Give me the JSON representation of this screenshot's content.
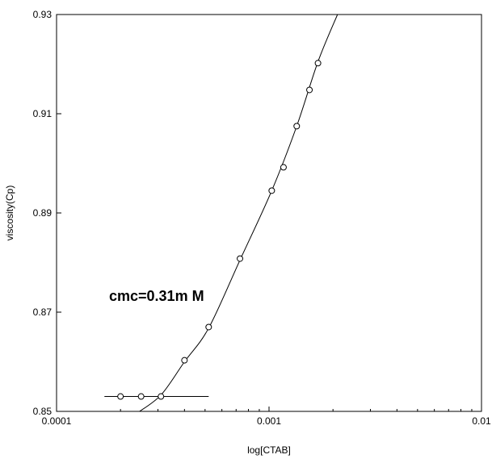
{
  "chart_data": {
    "type": "scatter",
    "title": "",
    "xlabel": "log[CTAB]",
    "ylabel": "viscosity(Cp)",
    "xscale": "log",
    "xlim": [
      0.0001,
      0.01
    ],
    "ylim": [
      0.85,
      0.93
    ],
    "xticks": [
      0.0001,
      0.001,
      0.01
    ],
    "xtick_labels": [
      "0.0001",
      "0.001",
      "0.01"
    ],
    "yticks": [
      0.85,
      0.87,
      0.89,
      0.91,
      0.93
    ],
    "ytick_labels": [
      "0.85",
      "0.87",
      "0.89",
      "0.91",
      "0.93"
    ],
    "grid": false,
    "annotation": "cmc=0.31m M",
    "series": [
      {
        "marker": "open-circle",
        "x": [
          0.0002,
          0.00025,
          0.00031,
          0.0004,
          0.00052,
          0.00073,
          0.00103,
          0.00117,
          0.00135,
          0.00155,
          0.0017
        ],
        "y": [
          0.853,
          0.853,
          0.853,
          0.8603,
          0.867,
          0.8808,
          0.8945,
          0.8992,
          0.9075,
          0.9148,
          0.9202
        ]
      }
    ],
    "fit_lines": [
      {
        "style": "solid",
        "x": [
          0.000168,
          0.00052
        ],
        "y": [
          0.853,
          0.853
        ]
      },
      {
        "style": "solid",
        "x": [
          0.00024,
          0.00031,
          0.0004,
          0.00052,
          0.00073,
          0.00103,
          0.00135,
          0.0017,
          0.0021
        ],
        "y": [
          0.8497,
          0.8533,
          0.86,
          0.8668,
          0.8805,
          0.8945,
          0.9075,
          0.9205,
          0.93
        ]
      }
    ]
  }
}
